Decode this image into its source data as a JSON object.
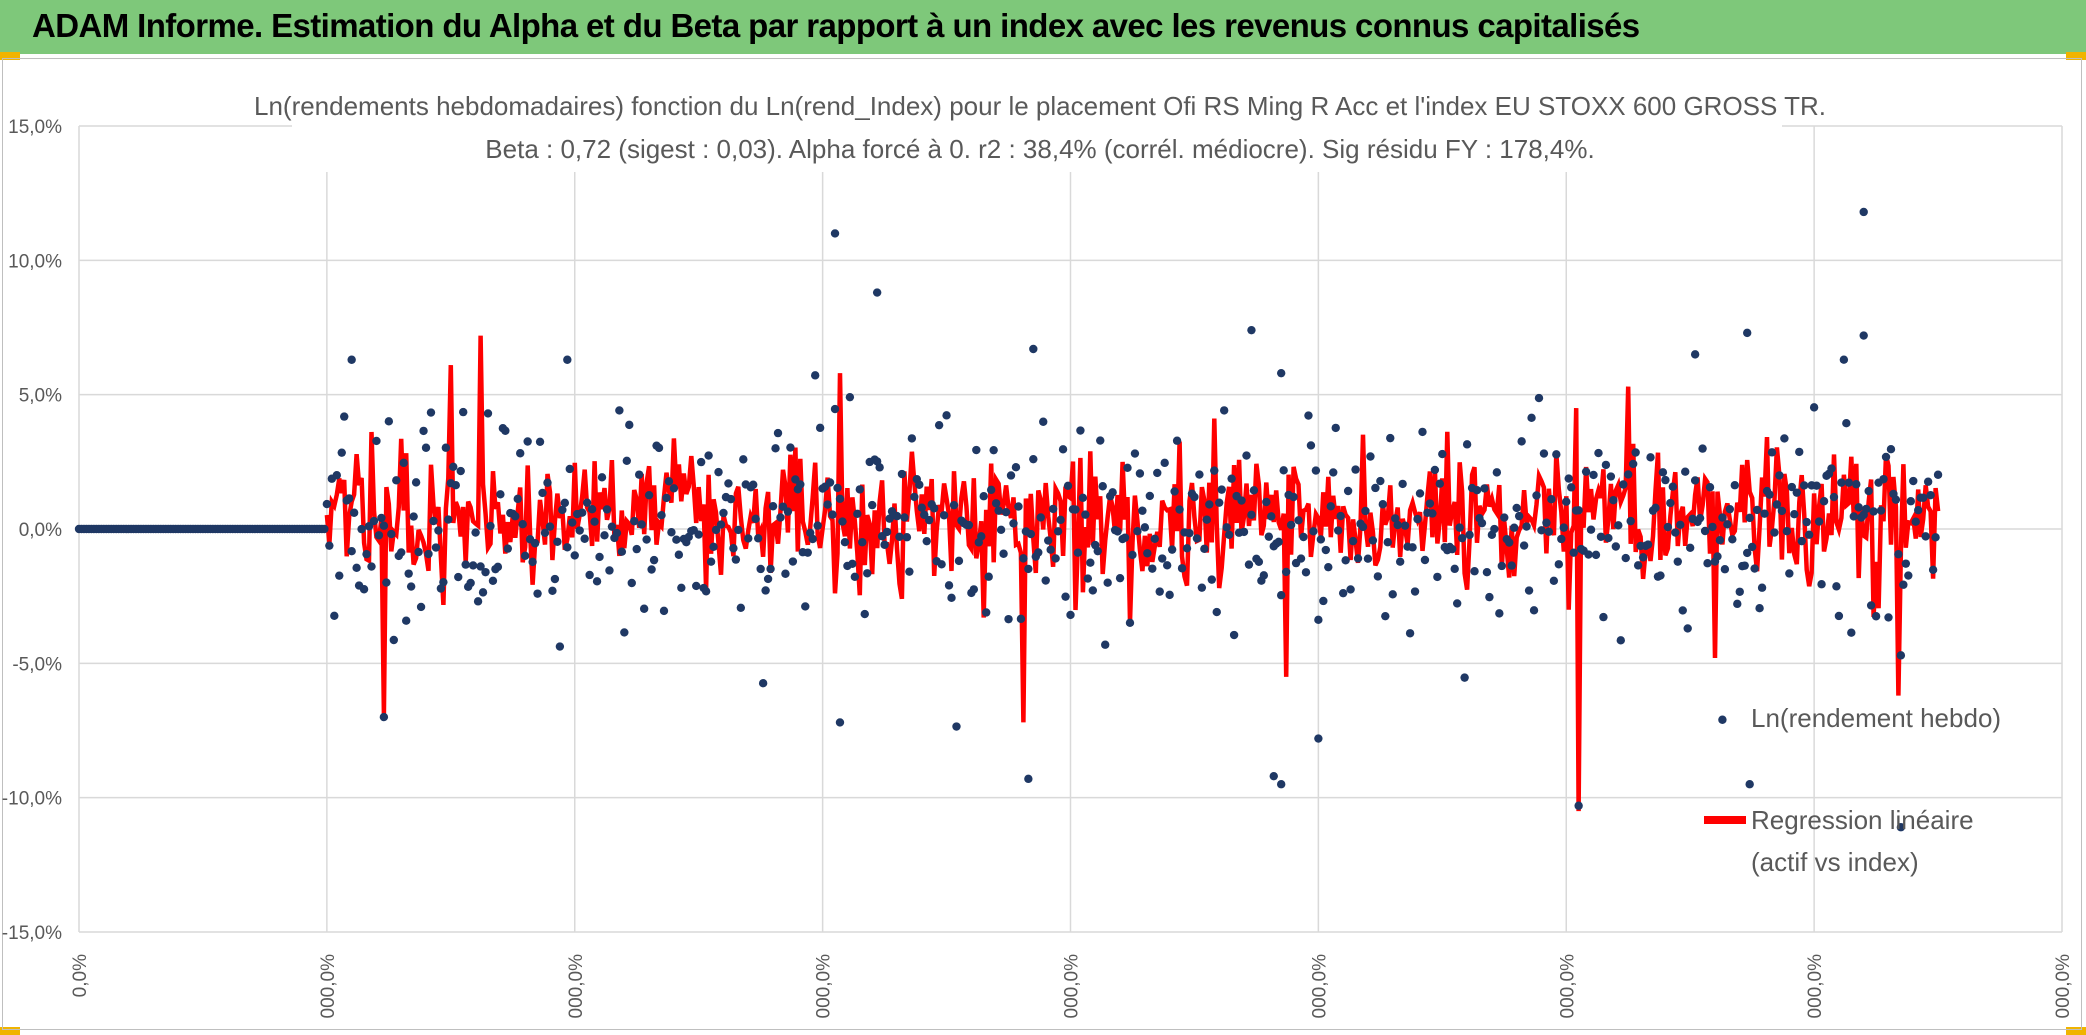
{
  "banner": {
    "title": "ADAM Informe. Estimation du Alpha et du Beta par rapport à un index avec les revenus connus capitalisés"
  },
  "colors": {
    "banner_bg": "#7ec87a",
    "scatter": "#1f3864",
    "regression": "#ff0000",
    "grid": "#d9d9d9",
    "text": "#595959"
  },
  "chart_data": {
    "type": "scatter",
    "title_line1": "Ln(rendements hebdomadaires) fonction du Ln(rend_Index) pour le placement Ofi RS Ming R Acc et l'index EU STOXX 600 GROSS TR.",
    "title_line2": "Beta : 0,72 (sigest : 0,03).  Alpha forcé à 0. r2 : 38,4% (corrél. médiocre). Sig résidu FY : 178,4%.",
    "ylim": [
      -15,
      15
    ],
    "y_ticks": [
      15,
      10,
      5,
      0,
      -5,
      -10,
      -15
    ],
    "y_tick_labels": [
      "15,0%",
      "10,0%",
      "5,0%",
      "0,0%",
      "-5,0%",
      "-10,0%",
      "-15,0%"
    ],
    "x_tick_labels": [
      "0,0%",
      "000,0%",
      "000,0%",
      "000,0%",
      "000,0%",
      "000,0%",
      "000,0%",
      "000,0%",
      "000,0%"
    ],
    "series": [
      {
        "name": "Ln(rendement hebdo)",
        "kind": "scatter",
        "color": "#1f3864"
      },
      {
        "name": "Regression linéaire (actif vs index)",
        "kind": "line",
        "color": "#ff0000"
      }
    ],
    "legend": {
      "position": "right",
      "scatter_label": "Ln(rendement hebdo)",
      "line_label_1": "Regression linéaire",
      "line_label_2": "(actif vs index)"
    },
    "zero_run": {
      "start_index": 0,
      "count": 100,
      "value": 0
    },
    "data_start_index": 100,
    "data_end_index": 750,
    "x_max_index": 800,
    "highlight_points": [
      {
        "index": 305,
        "value": 11.0
      },
      {
        "index": 322,
        "value": 8.8
      },
      {
        "index": 110,
        "value": 6.3
      },
      {
        "index": 197,
        "value": 6.3
      },
      {
        "index": 385,
        "value": 6.7
      },
      {
        "index": 473,
        "value": 7.4
      },
      {
        "index": 485,
        "value": 5.8
      },
      {
        "index": 652,
        "value": 6.5
      },
      {
        "index": 673,
        "value": 7.3
      },
      {
        "index": 720,
        "value": 11.8
      },
      {
        "index": 720,
        "value": 7.2
      },
      {
        "index": 383,
        "value": -9.3
      },
      {
        "index": 482,
        "value": -9.2
      },
      {
        "index": 485,
        "value": -9.5
      },
      {
        "index": 500,
        "value": -7.8
      },
      {
        "index": 605,
        "value": -10.3
      },
      {
        "index": 674,
        "value": -9.5
      },
      {
        "index": 663,
        "value": -7.1
      },
      {
        "index": 735,
        "value": -11.1
      },
      {
        "index": 123,
        "value": -7.0
      },
      {
        "index": 307,
        "value": -7.2
      }
    ],
    "highlight_regression": [
      {
        "index": 150,
        "value": 6.1
      },
      {
        "index": 162,
        "value": 7.2
      },
      {
        "index": 307,
        "value": 5.8
      },
      {
        "index": 605,
        "value": -10.5
      },
      {
        "index": 604,
        "value": 4.5
      },
      {
        "index": 625,
        "value": 5.3
      },
      {
        "index": 123,
        "value": -6.9
      },
      {
        "index": 381,
        "value": -7.2
      },
      {
        "index": 487,
        "value": -5.5
      },
      {
        "index": 734,
        "value": -6.2
      },
      {
        "index": 660,
        "value": -4.8
      }
    ],
    "noise": {
      "scatter_sd": 2.2,
      "regression_sd": 1.3,
      "seed": 17
    }
  }
}
